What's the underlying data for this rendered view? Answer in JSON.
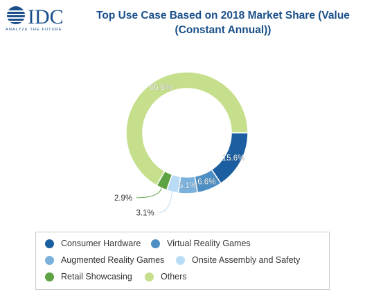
{
  "logo": {
    "text": "IDC",
    "tagline": "ANALYZE THE FUTURE"
  },
  "chart_data": {
    "type": "pie",
    "title": "Top Use Case Based on 2018 Market Share (Value (Constant Annual))",
    "title_lines": [
      "Top Use Case Based on 2018 Market Share (Value",
      "(Constant Annual))"
    ],
    "unit": "%",
    "categories": [
      "Consumer Hardware",
      "Virtual Reality Games",
      "Augmented Reality Games",
      "Onsite Assembly and Safety",
      "Retail Showcasing",
      "Others"
    ],
    "values": [
      15.6,
      6.6,
      5.1,
      3.1,
      2.9,
      66.6
    ],
    "data_labels": [
      "15.6%",
      "6.6%",
      "5.1%",
      "3.1%",
      "2.9%",
      "66.6%"
    ],
    "colors": [
      "#1c5fa0",
      "#4d8fc4",
      "#7ab2dd",
      "#b9dcf6",
      "#5ea343",
      "#c6df8d"
    ],
    "donut": true,
    "legend_position": "bottom"
  }
}
